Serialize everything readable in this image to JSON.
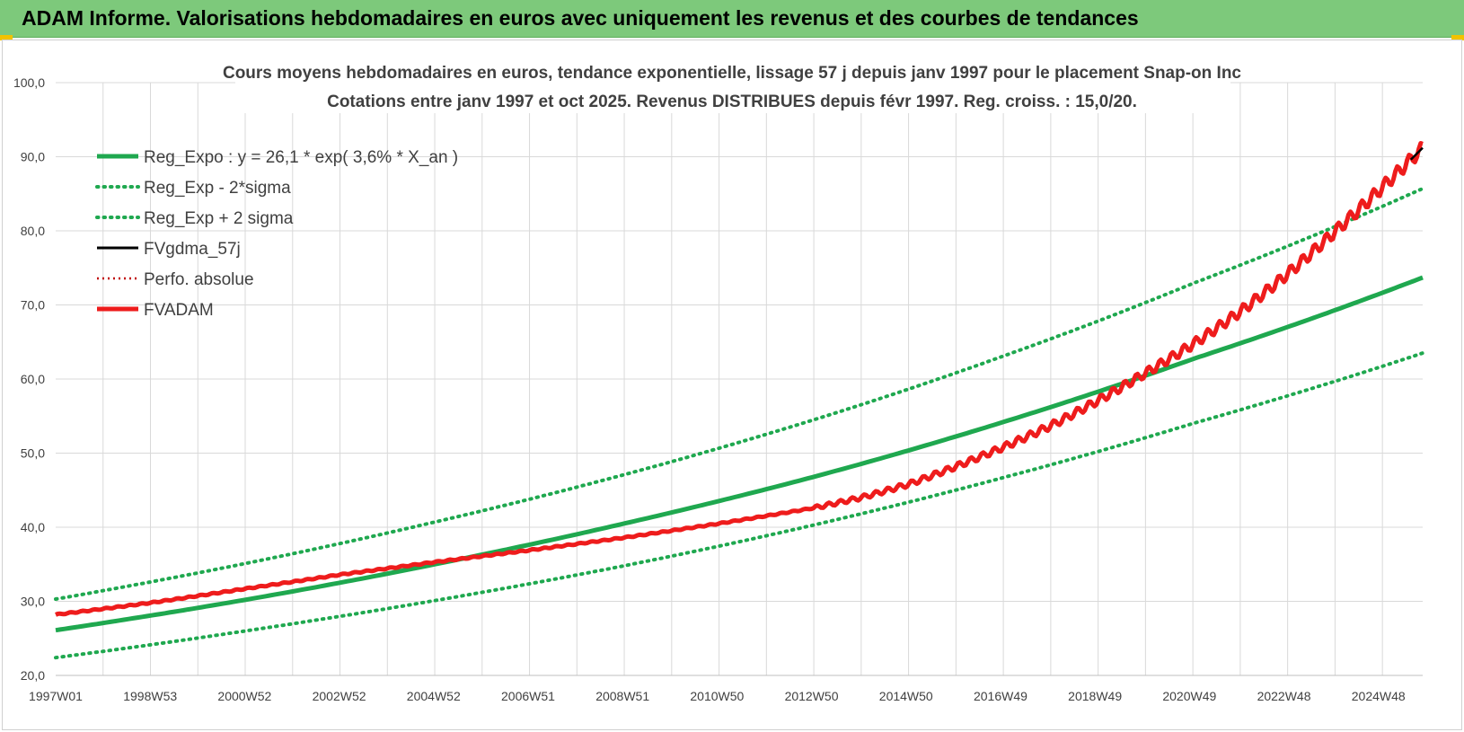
{
  "header": {
    "title": "ADAM Informe. Valorisations hebdomadaires en euros avec uniquement les revenus et des courbes de tendances"
  },
  "colors": {
    "header_bg": "#7dc97b",
    "reg_green": "#1fa84f",
    "band_green": "#1fa84f",
    "fvadam_red": "#ee1c1c",
    "fvgdma_black": "#000000",
    "perfo_red": "#c00000",
    "grid": "#d9d9d9"
  },
  "chart_data": {
    "type": "line",
    "title": [
      "Cours moyens hebdomadaires en euros, tendance exponentielle, lissage 57 j depuis janv 1997 pour le placement Snap-on Inc",
      "Cotations entre janv 1997 et oct 2025. Revenus DISTRIBUES depuis févr 1997. Reg. croiss. : 15,0/20."
    ],
    "xlabel": "",
    "ylabel": "",
    "ylim": [
      20,
      100
    ],
    "y_ticks": [
      "20,0",
      "30,0",
      "40,0",
      "50,0",
      "60,0",
      "70,0",
      "80,0",
      "90,0",
      "100,0"
    ],
    "x_tick_labels": [
      "1997W01",
      "1998W53",
      "2000W52",
      "2002W52",
      "2004W52",
      "2006W51",
      "2008W51",
      "2010W50",
      "2012W50",
      "2014W50",
      "2016W49",
      "2018W49",
      "2020W49",
      "2022W48",
      "2024W48"
    ],
    "x_range_years": [
      1997.0,
      2025.85
    ],
    "grid": true,
    "legend_position": "top-left",
    "legend": [
      {
        "label": "Reg_Expo : y = 26,1 * exp( 3,6% *  X_an )",
        "style": "solid-thick",
        "color": "#1fa84f"
      },
      {
        "label": "Reg_Exp - 2*sigma",
        "style": "dotted",
        "color": "#1fa84f"
      },
      {
        "label": "Reg_Exp + 2 sigma",
        "style": "dotted",
        "color": "#1fa84f"
      },
      {
        "label": "FVgdma_57j",
        "style": "solid",
        "color": "#000000"
      },
      {
        "label": "Perfo. absolue",
        "style": "dotted-thin",
        "color": "#c00000"
      },
      {
        "label": "FVADAM",
        "style": "solid-thick",
        "color": "#ee1c1c"
      }
    ],
    "series": [
      {
        "name": "Reg_Expo : y = 26,1 * exp( 3,6% *  X_an )",
        "x": [
          1997,
          2001,
          2005,
          2009,
          2013,
          2017,
          2021,
          2025.85
        ],
        "values": [
          26.1,
          30.2,
          35.0,
          40.5,
          46.8,
          54.2,
          62.7,
          73.7
        ]
      },
      {
        "name": "Reg_Exp - 2*sigma",
        "x": [
          1997,
          2001,
          2005,
          2009,
          2013,
          2017,
          2021,
          2025.85
        ],
        "values": [
          22.4,
          26.0,
          30.1,
          34.8,
          40.3,
          46.7,
          54.0,
          63.5
        ]
      },
      {
        "name": "Reg_Exp + 2 sigma",
        "x": [
          1997,
          2001,
          2005,
          2009,
          2013,
          2017,
          2021,
          2025.85
        ],
        "values": [
          30.3,
          35.1,
          40.7,
          47.1,
          54.5,
          63.1,
          72.9,
          85.7
        ]
      },
      {
        "name": "FVADAM",
        "x": [
          1997,
          1999,
          2001,
          2003,
          2005,
          2007,
          2009,
          2011,
          2013,
          2014,
          2015,
          2016,
          2017,
          2018,
          2019,
          2020,
          2021,
          2022,
          2023,
          2024,
          2025,
          2025.85
        ],
        "values": [
          28.2,
          29.8,
          31.7,
          33.6,
          35.3,
          36.9,
          38.6,
          40.5,
          42.6,
          44.0,
          45.8,
          48.2,
          50.8,
          53.7,
          57.1,
          60.8,
          64.7,
          69.1,
          74.2,
          79.9,
          85.9,
          91.2
        ]
      },
      {
        "name": "FVgdma_57j",
        "x": [
          2025.6,
          2025.85
        ],
        "values": [
          89.6,
          91.2
        ]
      }
    ]
  }
}
